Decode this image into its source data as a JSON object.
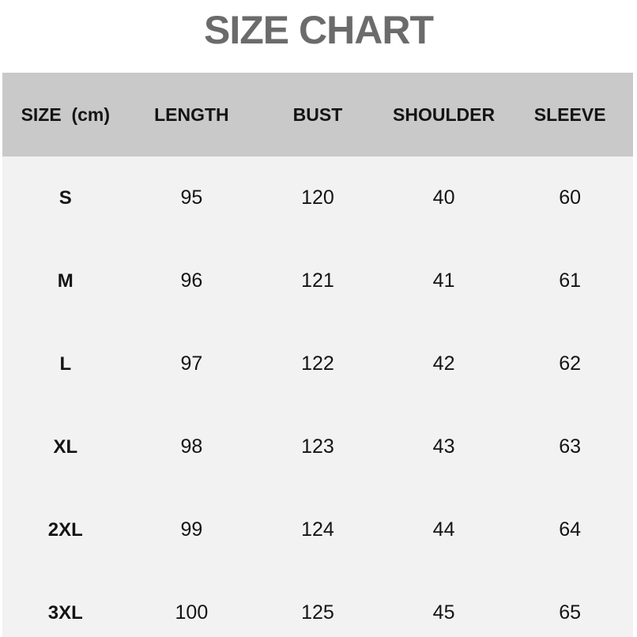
{
  "title": "SIZE CHART",
  "colors": {
    "title_text": "#6b6b6b",
    "header_bg": "#c9c9c9",
    "body_bg": "#f2f2f2",
    "cell_text": "#141414",
    "page_bg": "#ffffff"
  },
  "chart_data": {
    "type": "table",
    "title": "SIZE CHART",
    "unit": "cm",
    "columns": [
      "SIZE  (cm)",
      "LENGTH",
      "BUST",
      "SHOULDER",
      "SLEEVE"
    ],
    "rows": [
      [
        "S",
        95,
        120,
        40,
        60
      ],
      [
        "M",
        96,
        121,
        41,
        61
      ],
      [
        "L",
        97,
        122,
        42,
        62
      ],
      [
        "XL",
        98,
        123,
        43,
        63
      ],
      [
        "2XL",
        99,
        124,
        44,
        64
      ],
      [
        "3XL",
        100,
        125,
        45,
        65
      ]
    ]
  }
}
